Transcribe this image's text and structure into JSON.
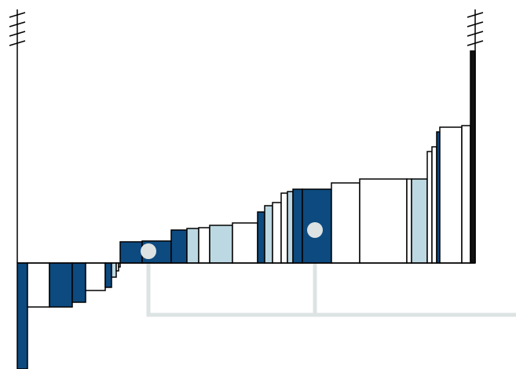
{
  "chart_data": {
    "type": "variable-width-bar",
    "values": [
      -135,
      -56,
      -56,
      -50,
      -35,
      -31,
      -18,
      -10,
      -5,
      27,
      28,
      42,
      44,
      45,
      48,
      51,
      65,
      73,
      77,
      89,
      91,
      94,
      94,
      102,
      107,
      107,
      107,
      142,
      148,
      167,
      173,
      175,
      270
    ],
    "widths": [
      13,
      28,
      29,
      17,
      25,
      8,
      6,
      3,
      2,
      28,
      37,
      20,
      15,
      14,
      29,
      32,
      9,
      10,
      11,
      8,
      7,
      12,
      37,
      36,
      60,
      6,
      20,
      6,
      6,
      4,
      28,
      11,
      6
    ],
    "colors": [
      "#0d4a7f",
      "#ffffff",
      "#0d4a7f",
      "#0d4a7f",
      "#ffffff",
      "#0d4a7f",
      "#bcd8e2",
      "#ffffff",
      "#ffffff",
      "#0d4a7f",
      "#0d4a7f",
      "#0d4a7f",
      "#bcd8e2",
      "#ffffff",
      "#bcd8e2",
      "#ffffff",
      "#0d4a7f",
      "#bcd8e2",
      "#ffffff",
      "#ffffff",
      "#bcd8e2",
      "#0d4a7f",
      "#0d4a7f",
      "#ffffff",
      "#ffffff",
      "#ffffff",
      "#bcd8e2",
      "#ffffff",
      "#ffffff",
      "#0d4a7f",
      "#ffffff",
      "#ffffff",
      "#111111"
    ],
    "xlim": [
      0,
      583
    ],
    "ylim": [
      -135,
      270
    ]
  }
}
